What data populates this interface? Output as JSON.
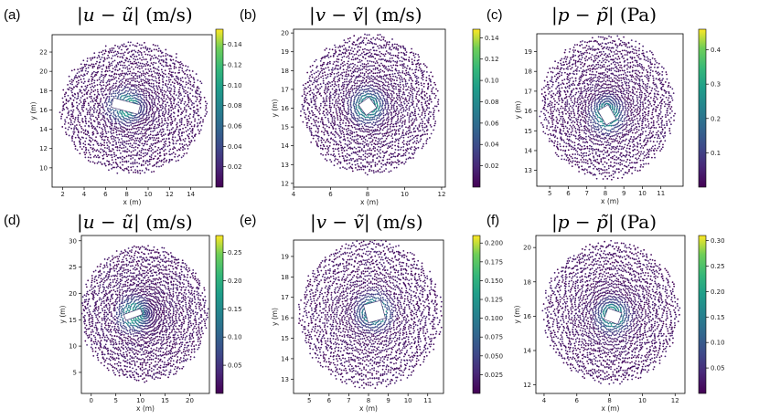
{
  "figure": {
    "panels": [
      {
        "tag": "(a)",
        "title_var": "u",
        "title_unit": "(m/s)"
      },
      {
        "tag": "(b)",
        "title_var": "v",
        "title_unit": "(m/s)"
      },
      {
        "tag": "(c)",
        "title_var": "p",
        "title_unit": "(Pa)"
      },
      {
        "tag": "(d)",
        "title_var": "u",
        "title_unit": "(m/s)"
      },
      {
        "tag": "(e)",
        "title_var": "v",
        "title_unit": "(m/s)"
      },
      {
        "tag": "(f)",
        "title_var": "p",
        "title_unit": "(Pa)"
      }
    ]
  },
  "chart_data": [
    {
      "type": "scatter",
      "panel": "a",
      "xlabel": "x (m)",
      "ylabel": "y (m)",
      "xlim": [
        1,
        16
      ],
      "ylim": [
        8,
        23.8
      ],
      "xticks": [
        2,
        4,
        6,
        8,
        10,
        12,
        14
      ],
      "yticks": [
        10,
        12,
        14,
        16,
        18,
        20,
        22
      ],
      "colorbar": {
        "min": 0,
        "max": 0.155,
        "ticks": [
          0.02,
          0.04,
          0.06,
          0.08,
          0.1,
          0.12,
          0.14
        ],
        "labels": [
          "0.02",
          "0.04",
          "0.06",
          "0.08",
          "0.10",
          "0.12",
          "0.14"
        ]
      },
      "cloud": {
        "center": [
          8.6,
          16.2
        ],
        "radius": 6.6
      },
      "obstacle": {
        "center": [
          7.9,
          16.4
        ],
        "width": 2.6,
        "height": 1.0,
        "angle_deg": -15
      }
    },
    {
      "type": "scatter",
      "panel": "b",
      "xlabel": "x (m)",
      "ylabel": "y (m)",
      "xlim": [
        4,
        12.2
      ],
      "ylim": [
        11.8,
        20.2
      ],
      "xticks": [
        4,
        6,
        8,
        10,
        12
      ],
      "yticks": [
        12,
        13,
        14,
        15,
        16,
        17,
        18,
        19,
        20
      ],
      "colorbar": {
        "min": 0,
        "max": 0.148,
        "ticks": [
          0.02,
          0.04,
          0.06,
          0.08,
          0.1,
          0.12,
          0.14
        ],
        "labels": [
          "0.02",
          "0.04",
          "0.06",
          "0.08",
          "0.10",
          "0.12",
          "0.14"
        ]
      },
      "cloud": {
        "center": [
          8.1,
          16.2
        ],
        "radius": 3.6
      },
      "obstacle": {
        "center": [
          8.0,
          16.1
        ],
        "width": 0.7,
        "height": 0.7,
        "angle_deg": 36
      }
    },
    {
      "type": "scatter",
      "panel": "c",
      "xlabel": "x (m)",
      "ylabel": "y (m)",
      "xlim": [
        4.3,
        12.2
      ],
      "ylim": [
        12.2,
        19.9
      ],
      "xticks": [
        5,
        6,
        7,
        8,
        9,
        10,
        11
      ],
      "yticks": [
        13,
        14,
        15,
        16,
        17,
        18,
        19
      ],
      "colorbar": {
        "min": 0,
        "max": 0.46,
        "ticks": [
          0.1,
          0.2,
          0.3,
          0.4
        ],
        "labels": [
          "0.1",
          "0.2",
          "0.3",
          "0.4"
        ]
      },
      "cloud": {
        "center": [
          8.1,
          16.2
        ],
        "radius": 3.5
      },
      "obstacle": {
        "center": [
          8.1,
          15.8
        ],
        "width": 0.9,
        "height": 0.6,
        "angle_deg": -60
      }
    },
    {
      "type": "scatter",
      "panel": "d",
      "xlabel": "x (m)",
      "ylabel": "y (m)",
      "xlim": [
        -2,
        24
      ],
      "ylim": [
        1,
        31
      ],
      "xticks": [
        0,
        5,
        10,
        15,
        20
      ],
      "yticks": [
        5,
        10,
        15,
        20,
        25,
        30
      ],
      "colorbar": {
        "min": 0,
        "max": 0.28,
        "ticks": [
          0.05,
          0.1,
          0.15,
          0.2,
          0.25
        ],
        "labels": [
          "0.05",
          "0.10",
          "0.15",
          "0.20",
          "0.25"
        ]
      },
      "cloud": {
        "center": [
          10.8,
          16.2
        ],
        "radius": 12.5
      },
      "obstacle": {
        "center": [
          8.5,
          16.0
        ],
        "width": 3.6,
        "height": 1.2,
        "angle_deg": 20
      }
    },
    {
      "type": "scatter",
      "panel": "e",
      "xlabel": "x (m)",
      "ylabel": "y (m)",
      "xlim": [
        4.2,
        11.8
      ],
      "ylim": [
        12.3,
        19.8
      ],
      "xticks": [
        5,
        6,
        7,
        8,
        9,
        10,
        11
      ],
      "yticks": [
        13,
        14,
        15,
        16,
        17,
        18,
        19
      ],
      "colorbar": {
        "min": 0,
        "max": 0.21,
        "ticks": [
          0.025,
          0.05,
          0.075,
          0.1,
          0.125,
          0.15,
          0.175,
          0.2
        ],
        "labels": [
          "0.025",
          "0.050",
          "0.075",
          "0.100",
          "0.125",
          "0.150",
          "0.175",
          "0.200"
        ]
      },
      "cloud": {
        "center": [
          8.1,
          16.2
        ],
        "radius": 3.5
      },
      "obstacle": {
        "center": [
          8.3,
          16.3
        ],
        "width": 0.9,
        "height": 0.9,
        "angle_deg": 15
      }
    },
    {
      "type": "scatter",
      "panel": "f",
      "xlabel": "x (m)",
      "ylabel": "y (m)",
      "xlim": [
        3.5,
        12.6
      ],
      "ylim": [
        11.5,
        20.7
      ],
      "xticks": [
        4,
        6,
        8,
        10,
        12
      ],
      "yticks": [
        12,
        14,
        16,
        18,
        20
      ],
      "colorbar": {
        "min": 0,
        "max": 0.31,
        "ticks": [
          0.05,
          0.1,
          0.15,
          0.2,
          0.25,
          0.3
        ],
        "labels": [
          "0.05",
          "0.10",
          "0.15",
          "0.20",
          "0.25",
          "0.30"
        ]
      },
      "cloud": {
        "center": [
          8.1,
          16.2
        ],
        "radius": 4.0
      },
      "obstacle": {
        "center": [
          8.2,
          16.0
        ],
        "width": 0.9,
        "height": 0.7,
        "angle_deg": -20
      }
    }
  ]
}
